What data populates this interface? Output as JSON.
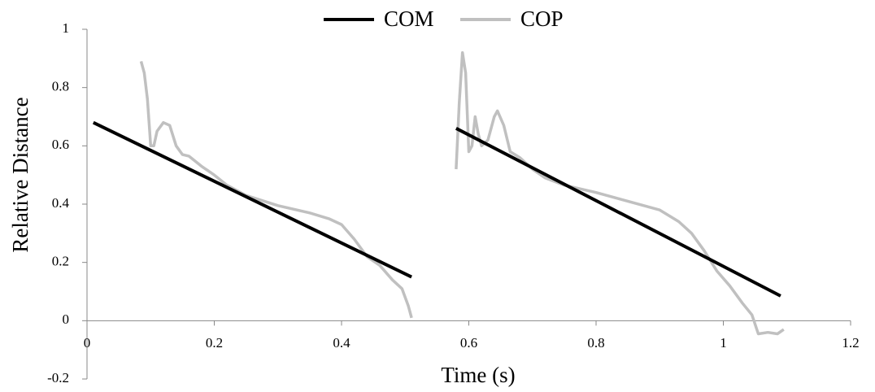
{
  "chart_data": {
    "type": "line",
    "xlabel": "Time (s)",
    "ylabel": "Relative Distance",
    "xlim": [
      0,
      1.2
    ],
    "xticks": [
      0,
      0.2,
      0.4,
      0.6,
      0.8,
      1,
      1.2
    ],
    "ylim": [
      -0.2,
      1
    ],
    "yticks": [
      -0.2,
      0,
      0.2,
      0.4,
      0.6,
      0.8,
      1
    ],
    "legend": "top",
    "series": [
      {
        "name": "COM",
        "color": "#000000",
        "x": [
          0.01,
          0.51,
          null,
          0.58,
          1.09
        ],
        "values": [
          0.68,
          0.15,
          null,
          0.66,
          0.085
        ]
      },
      {
        "name": "COP",
        "color": "#c0c0c0",
        "x": [
          0.085,
          0.09,
          0.095,
          0.1,
          0.105,
          0.11,
          0.12,
          0.13,
          0.14,
          0.15,
          0.16,
          0.18,
          0.2,
          0.22,
          0.25,
          0.3,
          0.35,
          0.38,
          0.4,
          0.42,
          0.44,
          0.46,
          0.48,
          0.495,
          0.505,
          0.51,
          null,
          0.58,
          0.585,
          0.59,
          0.595,
          0.6,
          0.605,
          0.61,
          0.615,
          0.62,
          0.63,
          0.64,
          0.645,
          0.655,
          0.665,
          0.68,
          0.7,
          0.72,
          0.75,
          0.8,
          0.85,
          0.9,
          0.93,
          0.95,
          0.97,
          0.99,
          1.01,
          1.03,
          1.045,
          1.055,
          1.07,
          1.085,
          1.095
        ],
        "values": [
          0.89,
          0.85,
          0.76,
          0.6,
          0.6,
          0.65,
          0.68,
          0.67,
          0.6,
          0.57,
          0.565,
          0.53,
          0.5,
          0.465,
          0.43,
          0.395,
          0.37,
          0.35,
          0.33,
          0.28,
          0.22,
          0.19,
          0.14,
          0.11,
          0.05,
          0.01,
          null,
          0.52,
          0.75,
          0.92,
          0.85,
          0.58,
          0.6,
          0.7,
          0.64,
          0.6,
          0.62,
          0.7,
          0.72,
          0.67,
          0.58,
          0.56,
          0.52,
          0.49,
          0.465,
          0.44,
          0.41,
          0.38,
          0.34,
          0.3,
          0.24,
          0.17,
          0.12,
          0.06,
          0.02,
          -0.045,
          -0.04,
          -0.045,
          -0.03
        ]
      }
    ]
  }
}
